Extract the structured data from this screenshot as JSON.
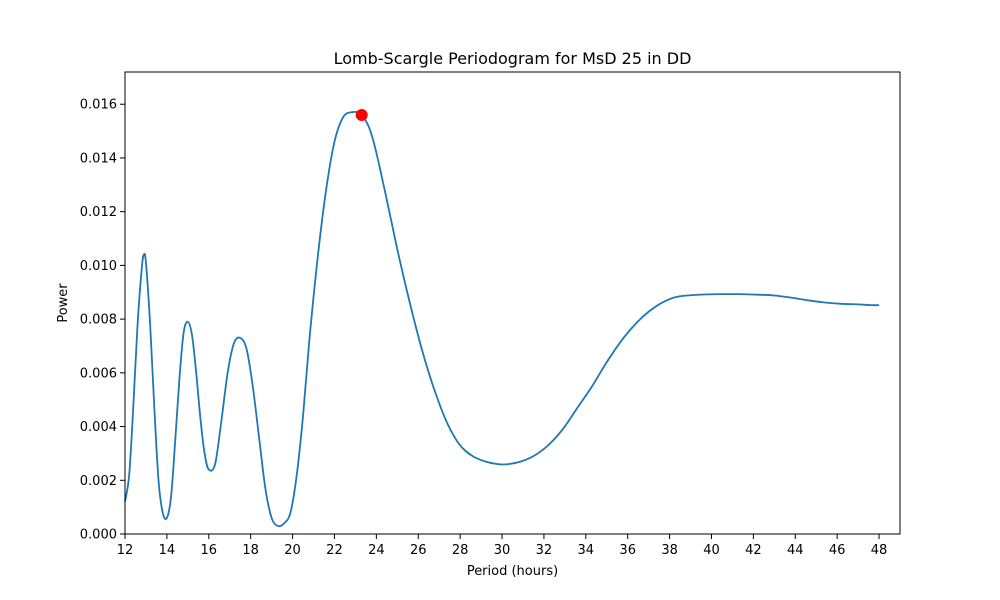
{
  "chart_data": {
    "type": "line",
    "title": "Lomb-Scargle Periodogram for MsD 25 in DD",
    "xlabel": "Period (hours)",
    "ylabel": "Power",
    "xlim": [
      12,
      49
    ],
    "ylim": [
      0,
      0.0172
    ],
    "xticks": [
      12,
      14,
      16,
      18,
      20,
      22,
      24,
      26,
      28,
      30,
      32,
      34,
      36,
      38,
      40,
      42,
      44,
      46,
      48
    ],
    "yticks": [
      "0.000",
      "0.002",
      "0.004",
      "0.006",
      "0.008",
      "0.010",
      "0.012",
      "0.014",
      "0.016"
    ],
    "grid": false,
    "series": [
      {
        "color": "#1f77b4",
        "x": [
          12.0,
          12.2,
          12.4,
          12.6,
          12.8,
          12.9,
          13.0,
          13.2,
          13.4,
          13.6,
          13.8,
          14.0,
          14.2,
          14.4,
          14.6,
          14.8,
          15.0,
          15.2,
          15.4,
          15.6,
          15.8,
          16.0,
          16.3,
          16.6,
          16.9,
          17.2,
          17.5,
          17.8,
          18.1,
          18.4,
          18.7,
          19.0,
          19.3,
          19.6,
          19.9,
          20.2,
          20.5,
          20.8,
          21.2,
          21.6,
          22.0,
          22.4,
          22.8,
          23.3,
          23.8,
          24.4,
          25.0,
          25.6,
          26.2,
          26.8,
          27.4,
          28.0,
          28.6,
          29.2,
          29.8,
          30.3,
          30.9,
          31.5,
          32.2,
          32.9,
          33.6,
          34.3,
          35.0,
          35.8,
          36.6,
          37.4,
          38.2,
          39.0,
          39.8,
          40.6,
          41.4,
          42.2,
          43.0,
          43.8,
          44.6,
          45.4,
          46.2,
          47.0,
          47.6,
          48.0
        ],
        "y": [
          0.0012,
          0.0022,
          0.0048,
          0.0078,
          0.0099,
          0.0104,
          0.0101,
          0.0078,
          0.0047,
          0.002,
          0.0008,
          0.0006,
          0.0014,
          0.0035,
          0.0058,
          0.0075,
          0.0079,
          0.0074,
          0.006,
          0.0043,
          0.003,
          0.0024,
          0.0026,
          0.0042,
          0.006,
          0.0071,
          0.0073,
          0.0069,
          0.0055,
          0.0036,
          0.0017,
          0.0006,
          0.0003,
          0.0004,
          0.0008,
          0.0022,
          0.0044,
          0.0072,
          0.0103,
          0.0128,
          0.0146,
          0.0155,
          0.0157,
          0.0156,
          0.0148,
          0.0128,
          0.0106,
          0.0086,
          0.0068,
          0.0053,
          0.0041,
          0.0033,
          0.0029,
          0.0027,
          0.0026,
          0.0026,
          0.0027,
          0.0029,
          0.0033,
          0.0039,
          0.0047,
          0.0055,
          0.0064,
          0.0073,
          0.008,
          0.0085,
          0.0088,
          0.00889,
          0.00892,
          0.00893,
          0.00893,
          0.00891,
          0.00888,
          0.0088,
          0.0087,
          0.00862,
          0.00857,
          0.00855,
          0.00852,
          0.00852
        ]
      }
    ],
    "marker": {
      "x": 23.3,
      "y": 0.0156,
      "color": "#ff0000"
    }
  }
}
